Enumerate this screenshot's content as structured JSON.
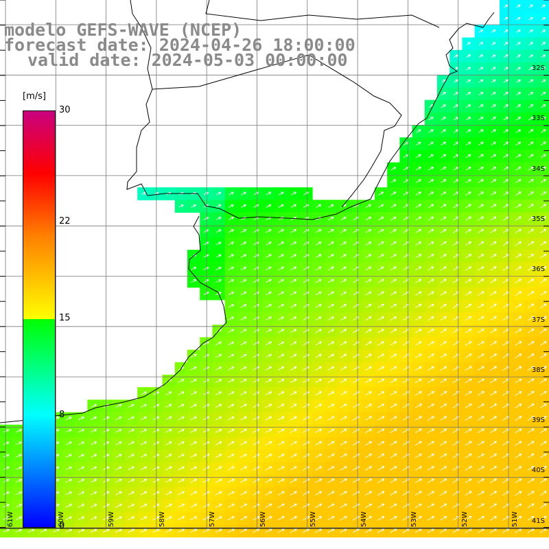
{
  "title": {
    "line1": "modelo GEFS-WAVE (NCEP)",
    "line2": "forecast date: 2024-04-26 18:00:00",
    "line3": "valid date: 2024-05-03 00:00:00"
  },
  "colorbar": {
    "unit": "[m/s]",
    "min": 0,
    "max": 30,
    "ticks": [
      "30",
      "22",
      "15",
      "8",
      "0"
    ],
    "tick_values": [
      30,
      22,
      15,
      8,
      0
    ]
  },
  "lat_labels": [
    "32S",
    "33S",
    "34S",
    "35S",
    "36S",
    "37S",
    "38S",
    "39S",
    "40S",
    "41S"
  ],
  "lon_labels": [
    "61W",
    "60W",
    "59W",
    "58W",
    "57W",
    "56W",
    "55W",
    "54W",
    "53W",
    "52W",
    "51W"
  ],
  "field": {
    "variable": "wind speed",
    "units": "m/s",
    "range_shown": [
      8,
      19
    ],
    "arrow_direction": "toward northeast",
    "colors": {
      "coast": "#000000",
      "grid": "#777777",
      "arrows": "#ffffff",
      "land": "#ffffff"
    }
  }
}
